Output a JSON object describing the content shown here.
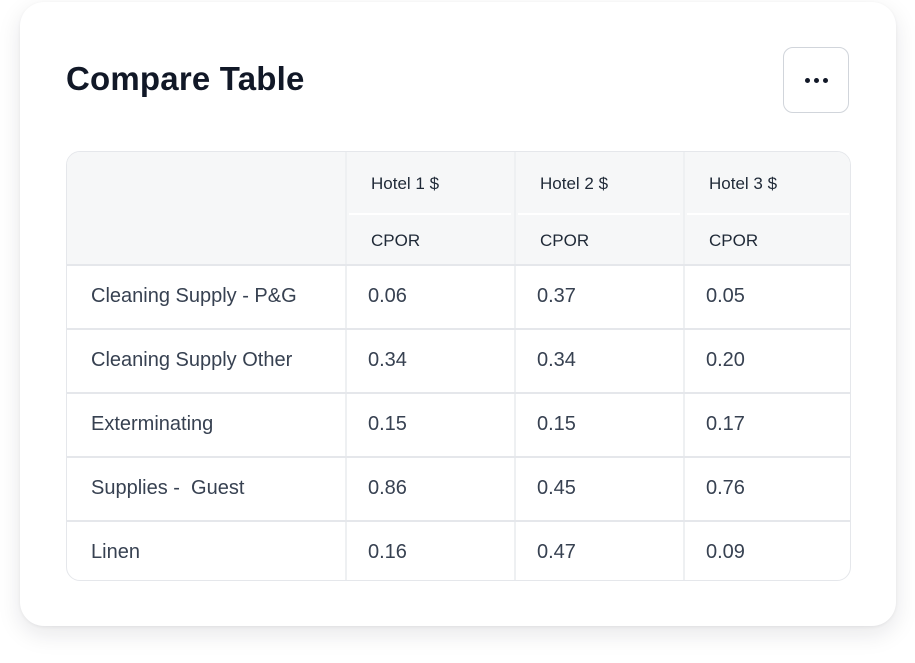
{
  "title": "Compare Table",
  "more_button": {
    "icon": "more-horizontal-icon"
  },
  "table": {
    "columns": [
      {
        "label": "Hotel 1 $",
        "sublabel": "CPOR"
      },
      {
        "label": "Hotel 2 $",
        "sublabel": "CPOR"
      },
      {
        "label": "Hotel 3 $",
        "sublabel": "CPOR"
      }
    ],
    "rows": [
      {
        "label": "Cleaning Supply - P&G",
        "values": [
          "0.06",
          "0.37",
          "0.05"
        ]
      },
      {
        "label": "Cleaning Supply Other",
        "values": [
          "0.34",
          "0.34",
          "0.20"
        ]
      },
      {
        "label": "Exterminating",
        "values": [
          "0.15",
          "0.15",
          "0.17"
        ]
      },
      {
        "label": "Supplies -  Guest",
        "values": [
          "0.86",
          "0.45",
          "0.76"
        ]
      },
      {
        "label": "Linen",
        "values": [
          "0.16",
          "0.47",
          "0.09"
        ]
      }
    ]
  }
}
